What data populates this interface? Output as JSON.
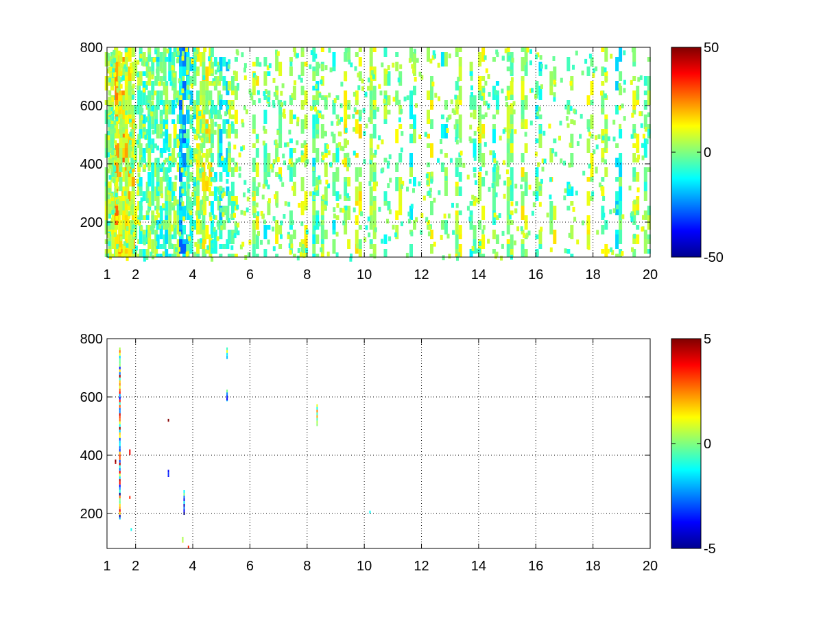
{
  "chart_data": [
    {
      "type": "heatmap",
      "title": "",
      "xlabel": "",
      "ylabel": "",
      "xlim": [
        1,
        20
      ],
      "ylim": [
        80,
        800
      ],
      "x_ticks": [
        1,
        2,
        4,
        6,
        8,
        10,
        12,
        14,
        16,
        18,
        20
      ],
      "x_tick_labels": [
        "1",
        "2",
        "4",
        "6",
        "8",
        "10",
        "12",
        "14",
        "16",
        "18",
        "20"
      ],
      "y_ticks": [
        200,
        400,
        600,
        800
      ],
      "y_tick_labels": [
        "200",
        "400",
        "600",
        "800"
      ],
      "grid": true,
      "colormap": "jet",
      "colorbar": {
        "range": [
          -50,
          50
        ],
        "tick_labels": [
          "50",
          "0",
          "-50"
        ],
        "ticks": [
          50,
          0,
          -50
        ]
      },
      "background": "#ffffff",
      "description_values": "dense sparse field of small values (mostly between -15 and +15) concentrated in vertical streaks; densest for x < 6",
      "streak_columns": [
        {
          "x": 1.1,
          "density": 0.55,
          "mean": 2
        },
        {
          "x": 1.3,
          "density": 0.6,
          "mean": 5
        },
        {
          "x": 1.45,
          "density": 0.9,
          "mean": 18
        },
        {
          "x": 1.6,
          "density": 0.6,
          "mean": 6
        },
        {
          "x": 1.8,
          "density": 0.95,
          "mean": 12
        },
        {
          "x": 2.0,
          "density": 0.55,
          "mean": 2
        },
        {
          "x": 2.3,
          "density": 0.6,
          "mean": -4
        },
        {
          "x": 2.6,
          "density": 0.65,
          "mean": -2
        },
        {
          "x": 2.9,
          "density": 0.6,
          "mean": -6
        },
        {
          "x": 3.2,
          "density": 0.65,
          "mean": -5
        },
        {
          "x": 3.5,
          "density": 0.55,
          "mean": 3
        },
        {
          "x": 3.7,
          "density": 0.8,
          "mean": -20
        },
        {
          "x": 3.95,
          "density": 0.6,
          "mean": -8
        },
        {
          "x": 4.3,
          "density": 0.55,
          "mean": 4
        },
        {
          "x": 4.5,
          "density": 0.7,
          "mean": 8
        },
        {
          "x": 4.8,
          "density": 0.5,
          "mean": -3
        },
        {
          "x": 5.1,
          "density": 0.5,
          "mean": -10
        },
        {
          "x": 5.4,
          "density": 0.35,
          "mean": 3
        },
        {
          "x": 6.2,
          "density": 0.45,
          "mean": 5
        },
        {
          "x": 6.6,
          "density": 0.35,
          "mean": -4
        },
        {
          "x": 7.0,
          "density": 0.35,
          "mean": 3
        },
        {
          "x": 7.5,
          "density": 0.35,
          "mean": -3
        },
        {
          "x": 7.9,
          "density": 0.5,
          "mean": 6
        },
        {
          "x": 8.3,
          "density": 0.6,
          "mean": -6
        },
        {
          "x": 8.6,
          "density": 0.35,
          "mean": 3
        },
        {
          "x": 9.0,
          "density": 0.35,
          "mean": -4
        },
        {
          "x": 9.4,
          "density": 0.35,
          "mean": 5
        },
        {
          "x": 9.8,
          "density": 0.45,
          "mean": 8
        },
        {
          "x": 10.3,
          "density": 0.75,
          "mean": 4
        },
        {
          "x": 10.8,
          "density": 0.25,
          "mean": -3
        },
        {
          "x": 11.2,
          "density": 0.3,
          "mean": 5
        },
        {
          "x": 11.7,
          "density": 0.25,
          "mean": -4
        },
        {
          "x": 12.3,
          "density": 0.3,
          "mean": 4
        },
        {
          "x": 12.8,
          "density": 0.25,
          "mean": -5
        },
        {
          "x": 13.3,
          "density": 0.55,
          "mean": 3
        },
        {
          "x": 13.8,
          "density": 0.25,
          "mean": -3
        },
        {
          "x": 14.1,
          "density": 0.5,
          "mean": 5
        },
        {
          "x": 14.6,
          "density": 0.35,
          "mean": -4
        },
        {
          "x": 15.1,
          "density": 0.75,
          "mean": 3
        },
        {
          "x": 15.6,
          "density": 0.4,
          "mean": 5
        },
        {
          "x": 16.1,
          "density": 0.35,
          "mean": -5
        },
        {
          "x": 16.6,
          "density": 0.3,
          "mean": 6
        },
        {
          "x": 17.2,
          "density": 0.25,
          "mean": -4
        },
        {
          "x": 17.9,
          "density": 0.2,
          "mean": 5
        },
        {
          "x": 18.4,
          "density": 0.35,
          "mean": 3
        },
        {
          "x": 18.9,
          "density": 0.55,
          "mean": -8
        },
        {
          "x": 19.5,
          "density": 0.45,
          "mean": 4
        },
        {
          "x": 19.9,
          "density": 0.5,
          "mean": -4
        }
      ]
    },
    {
      "type": "heatmap",
      "title": "",
      "xlabel": "",
      "ylabel": "",
      "xlim": [
        1,
        20
      ],
      "ylim": [
        80,
        800
      ],
      "x_ticks": [
        1,
        2,
        4,
        6,
        8,
        10,
        12,
        14,
        16,
        18,
        20
      ],
      "x_tick_labels": [
        "1",
        "2",
        "4",
        "6",
        "8",
        "10",
        "12",
        "14",
        "16",
        "18",
        "20"
      ],
      "y_ticks": [
        200,
        400,
        600,
        800
      ],
      "y_tick_labels": [
        "200",
        "400",
        "600",
        "800"
      ],
      "grid": true,
      "colormap": "jet",
      "colorbar": {
        "range": [
          -5,
          5
        ],
        "tick_labels": [
          "5",
          "0",
          "-5"
        ],
        "ticks": [
          5,
          0,
          -5
        ]
      },
      "background": "#ffffff",
      "segments": [
        {
          "x": 1.45,
          "y0": 180,
          "y1": 770,
          "mean": 0,
          "spread": 5
        },
        {
          "x": 1.3,
          "y0": 370,
          "y1": 385,
          "mean": 3,
          "spread": 2
        },
        {
          "x": 1.8,
          "y0": 400,
          "y1": 420,
          "mean": 4,
          "spread": 1
        },
        {
          "x": 1.85,
          "y0": 140,
          "y1": 150,
          "mean": -2,
          "spread": 1
        },
        {
          "x": 1.8,
          "y0": 250,
          "y1": 260,
          "mean": 3,
          "spread": 1
        },
        {
          "x": 3.15,
          "y0": 325,
          "y1": 350,
          "mean": -4,
          "spread": 1.5
        },
        {
          "x": 3.15,
          "y0": 515,
          "y1": 525,
          "mean": 5,
          "spread": 1
        },
        {
          "x": 3.7,
          "y0": 195,
          "y1": 280,
          "mean": -2,
          "spread": 3
        },
        {
          "x": 3.65,
          "y0": 100,
          "y1": 120,
          "mean": 1,
          "spread": 1
        },
        {
          "x": 3.85,
          "y0": 80,
          "y1": 90,
          "mean": 3,
          "spread": 1
        },
        {
          "x": 5.2,
          "y0": 585,
          "y1": 625,
          "mean": -2,
          "spread": 2
        },
        {
          "x": 5.2,
          "y0": 730,
          "y1": 770,
          "mean": 0,
          "spread": 3
        },
        {
          "x": 8.35,
          "y0": 500,
          "y1": 575,
          "mean": 1,
          "spread": 3
        },
        {
          "x": 10.2,
          "y0": 200,
          "y1": 210,
          "mean": -1,
          "spread": 1
        }
      ]
    }
  ]
}
